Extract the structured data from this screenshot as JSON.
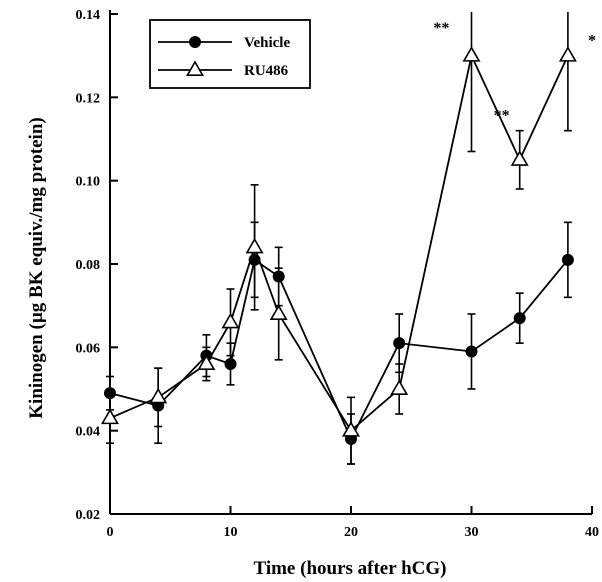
{
  "chart_data": {
    "type": "line",
    "xlabel": "Time (hours after hCG)",
    "ylabel": "Kininogen (µg BK equiv./mg protein)",
    "xlim": [
      0,
      40
    ],
    "ylim": [
      0.02,
      0.14
    ],
    "xticks": [
      0,
      10,
      20,
      30,
      40
    ],
    "yticks": [
      0.02,
      0.04,
      0.06,
      0.08,
      0.1,
      0.12,
      0.14
    ],
    "ytick_labels": [
      "0.02",
      "0.04",
      "0.06",
      "0.08",
      "0.10",
      "0.12",
      "0.14"
    ],
    "grid": false,
    "legend_position": "top-left",
    "series": [
      {
        "name": "Vehicle",
        "marker": "filled-circle",
        "x": [
          0,
          4,
          8,
          10,
          12,
          14,
          20,
          24,
          30,
          34,
          38
        ],
        "y": [
          0.049,
          0.046,
          0.058,
          0.056,
          0.081,
          0.077,
          0.038,
          0.061,
          0.059,
          0.067,
          0.081
        ],
        "err": [
          0.004,
          0.009,
          0.005,
          0.005,
          0.009,
          0.007,
          0.006,
          0.007,
          0.009,
          0.006,
          0.009
        ]
      },
      {
        "name": "RU486",
        "marker": "open-triangle",
        "x": [
          0,
          4,
          8,
          10,
          12,
          14,
          20,
          24,
          30,
          34,
          38
        ],
        "y": [
          0.043,
          0.048,
          0.056,
          0.066,
          0.084,
          0.068,
          0.04,
          0.05,
          0.13,
          0.105,
          0.13
        ],
        "err": [
          0.006,
          0.007,
          0.004,
          0.008,
          0.015,
          0.011,
          0.008,
          0.006,
          0.023,
          0.007,
          0.018
        ]
      }
    ],
    "annotations": [
      {
        "text": "**",
        "x": 27.5,
        "y": 0.1355
      },
      {
        "text": "**",
        "x": 32.5,
        "y": 0.1145
      },
      {
        "text": "*",
        "x": 40,
        "y": 0.1325
      }
    ]
  }
}
